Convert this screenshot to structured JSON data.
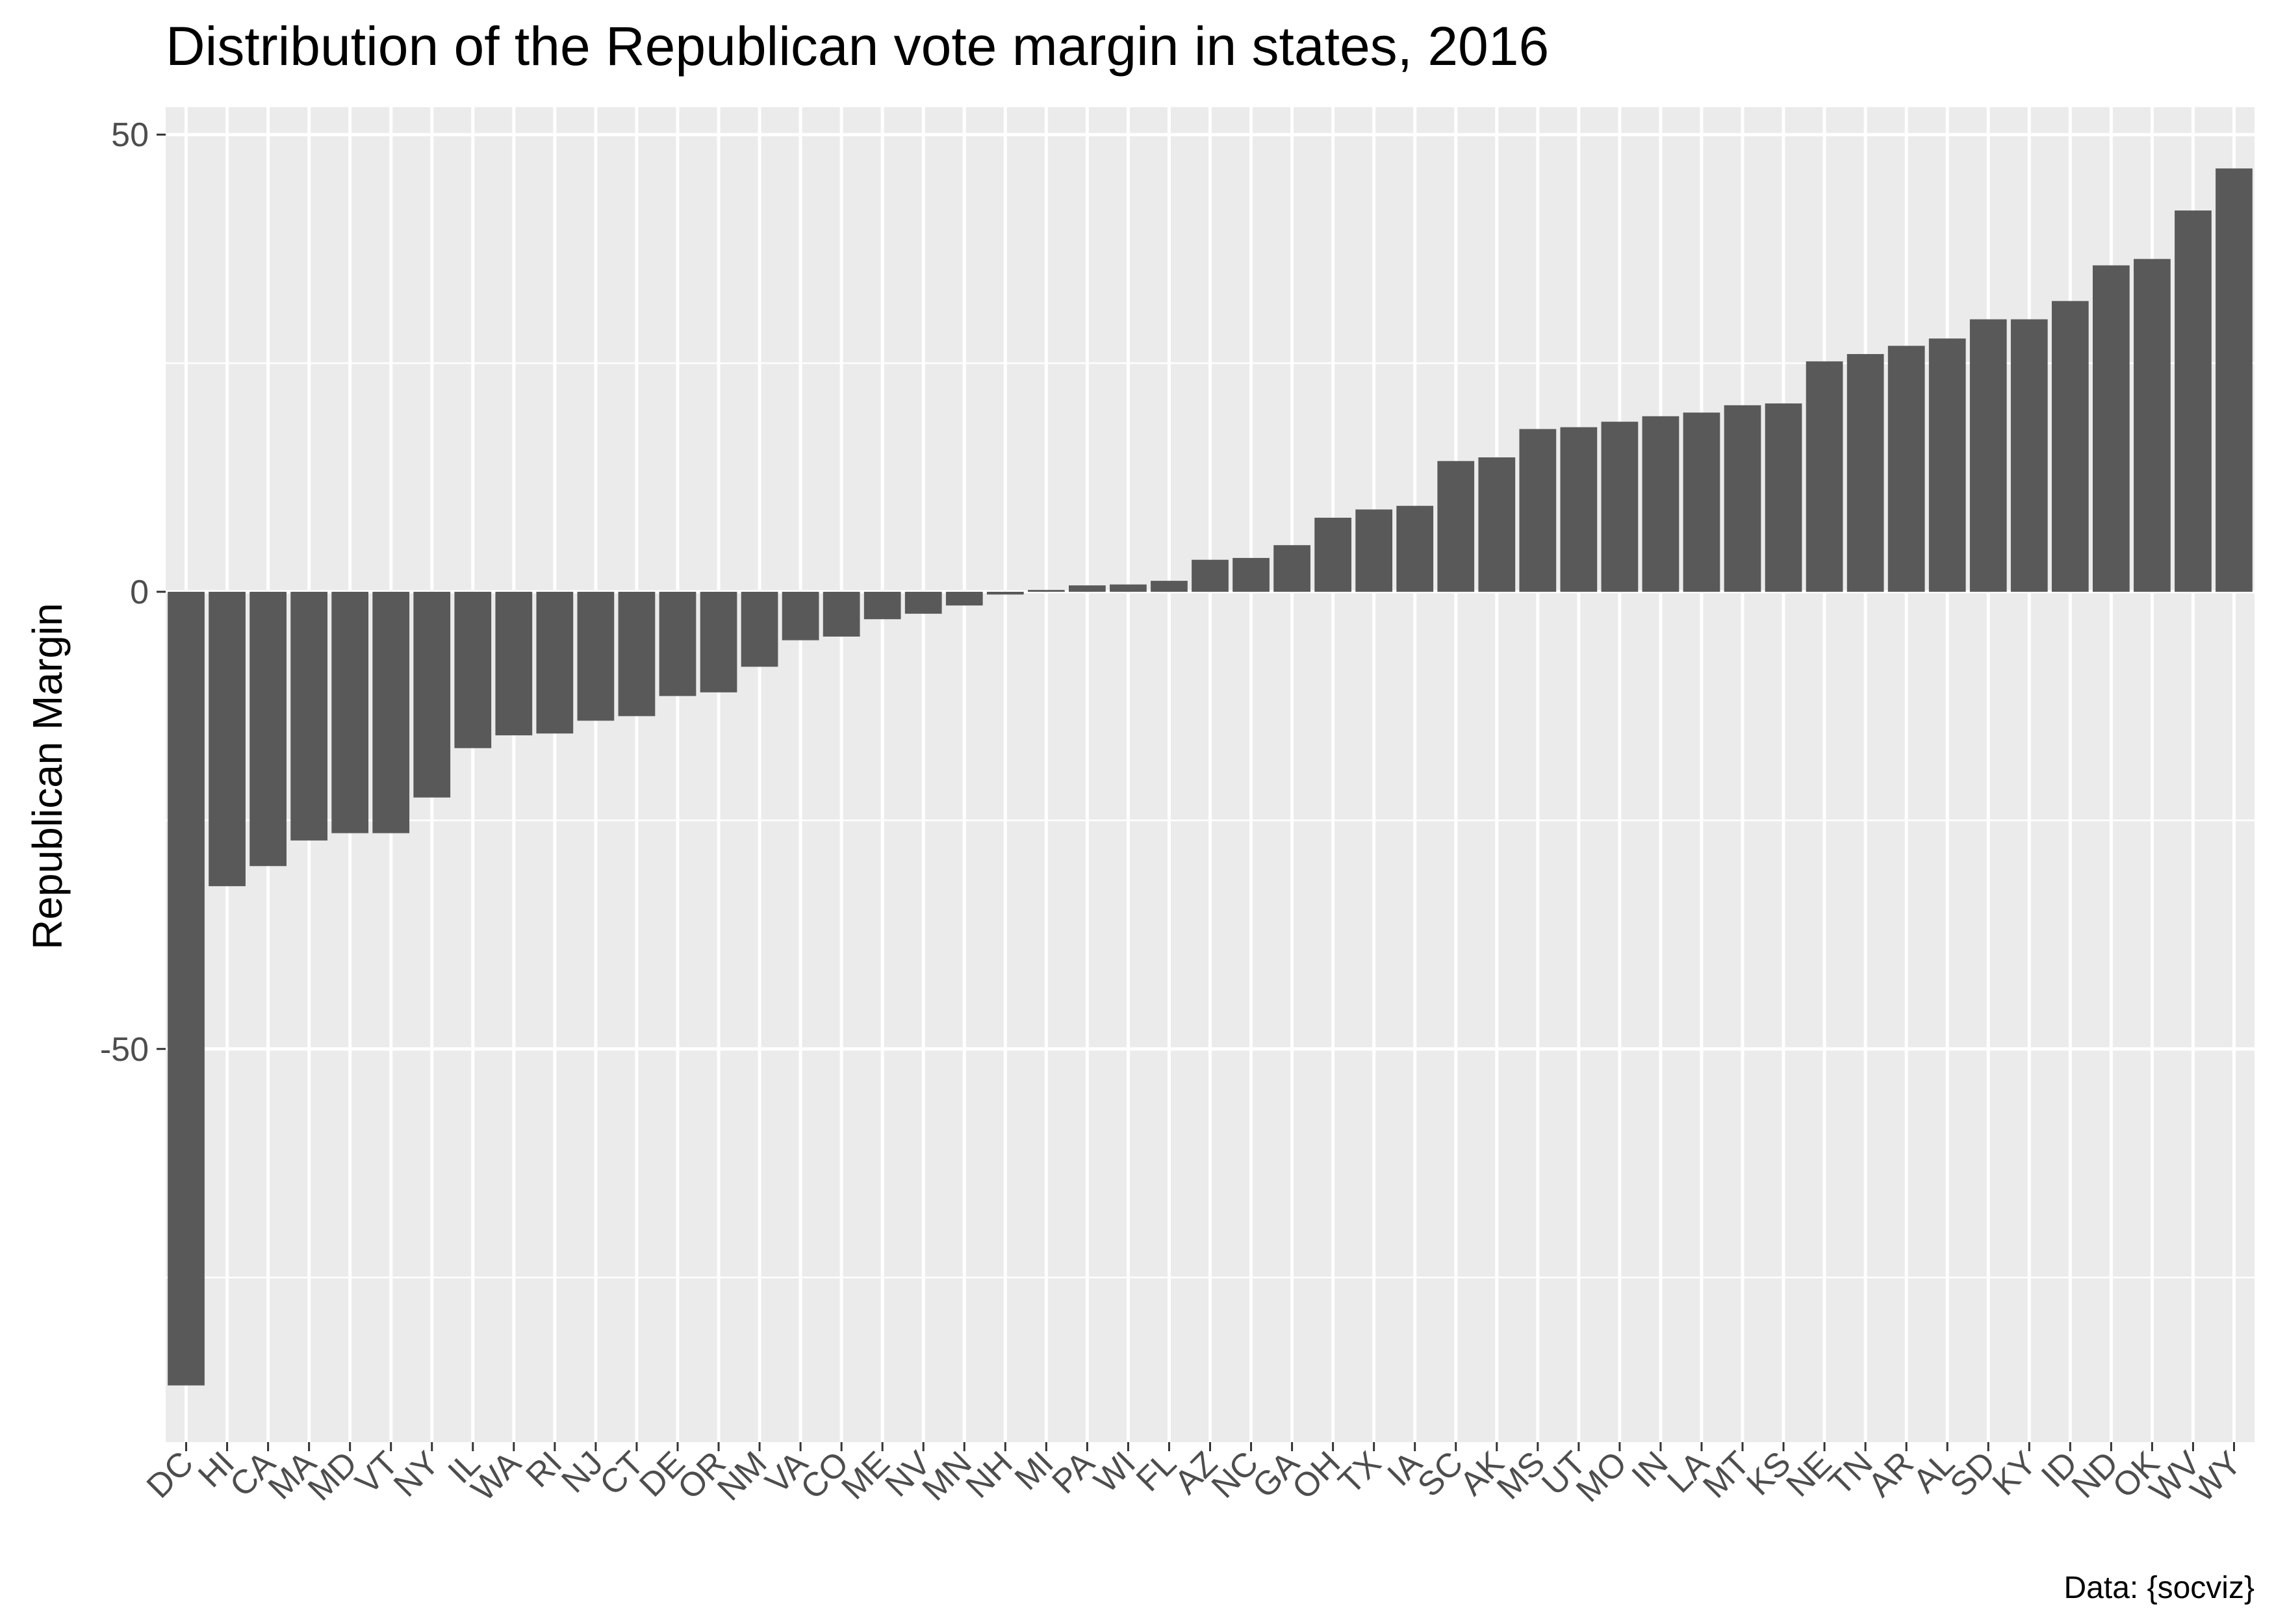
{
  "chart_data": {
    "type": "bar",
    "title": "Distribution of the Republican vote margin in states, 2016",
    "xlabel": "",
    "ylabel": "Republican Margin",
    "caption": "Data: {socviz}",
    "ylim": [
      -93,
      53
    ],
    "yticks": [
      50,
      0,
      -50
    ],
    "ytick_labels": [
      "50",
      "0",
      "-50"
    ],
    "grid": true,
    "legend": "none",
    "bar_color": "#595959",
    "panel_color": "#ebebeb",
    "categories": [
      "DC",
      "HI",
      "CA",
      "MA",
      "MD",
      "VT",
      "NY",
      "IL",
      "WA",
      "RI",
      "NJ",
      "CT",
      "DE",
      "OR",
      "NM",
      "VA",
      "CO",
      "ME",
      "NV",
      "MN",
      "NH",
      "MI",
      "PA",
      "WI",
      "FL",
      "AZ",
      "NC",
      "GA",
      "OH",
      "TX",
      "IA",
      "SC",
      "AK",
      "MS",
      "UT",
      "MO",
      "IN",
      "LA",
      "MT",
      "KS",
      "NE",
      "TN",
      "AR",
      "AL",
      "SD",
      "KY",
      "ID",
      "ND",
      "OK",
      "WV",
      "WY"
    ],
    "values": [
      -86.8,
      -32.2,
      -30.0,
      -27.2,
      -26.4,
      -26.4,
      -22.5,
      -17.1,
      -15.7,
      -15.5,
      -14.1,
      -13.6,
      -11.4,
      -11.0,
      -8.2,
      -5.3,
      -4.9,
      -3.0,
      -2.4,
      -1.5,
      -0.3,
      0.2,
      0.7,
      0.8,
      1.2,
      3.5,
      3.7,
      5.1,
      8.1,
      9.0,
      9.4,
      14.3,
      14.7,
      17.8,
      18.0,
      18.6,
      19.2,
      19.6,
      20.4,
      20.6,
      25.2,
      26.0,
      26.9,
      27.7,
      29.8,
      29.8,
      31.8,
      35.7,
      36.4,
      41.7,
      46.3
    ]
  }
}
